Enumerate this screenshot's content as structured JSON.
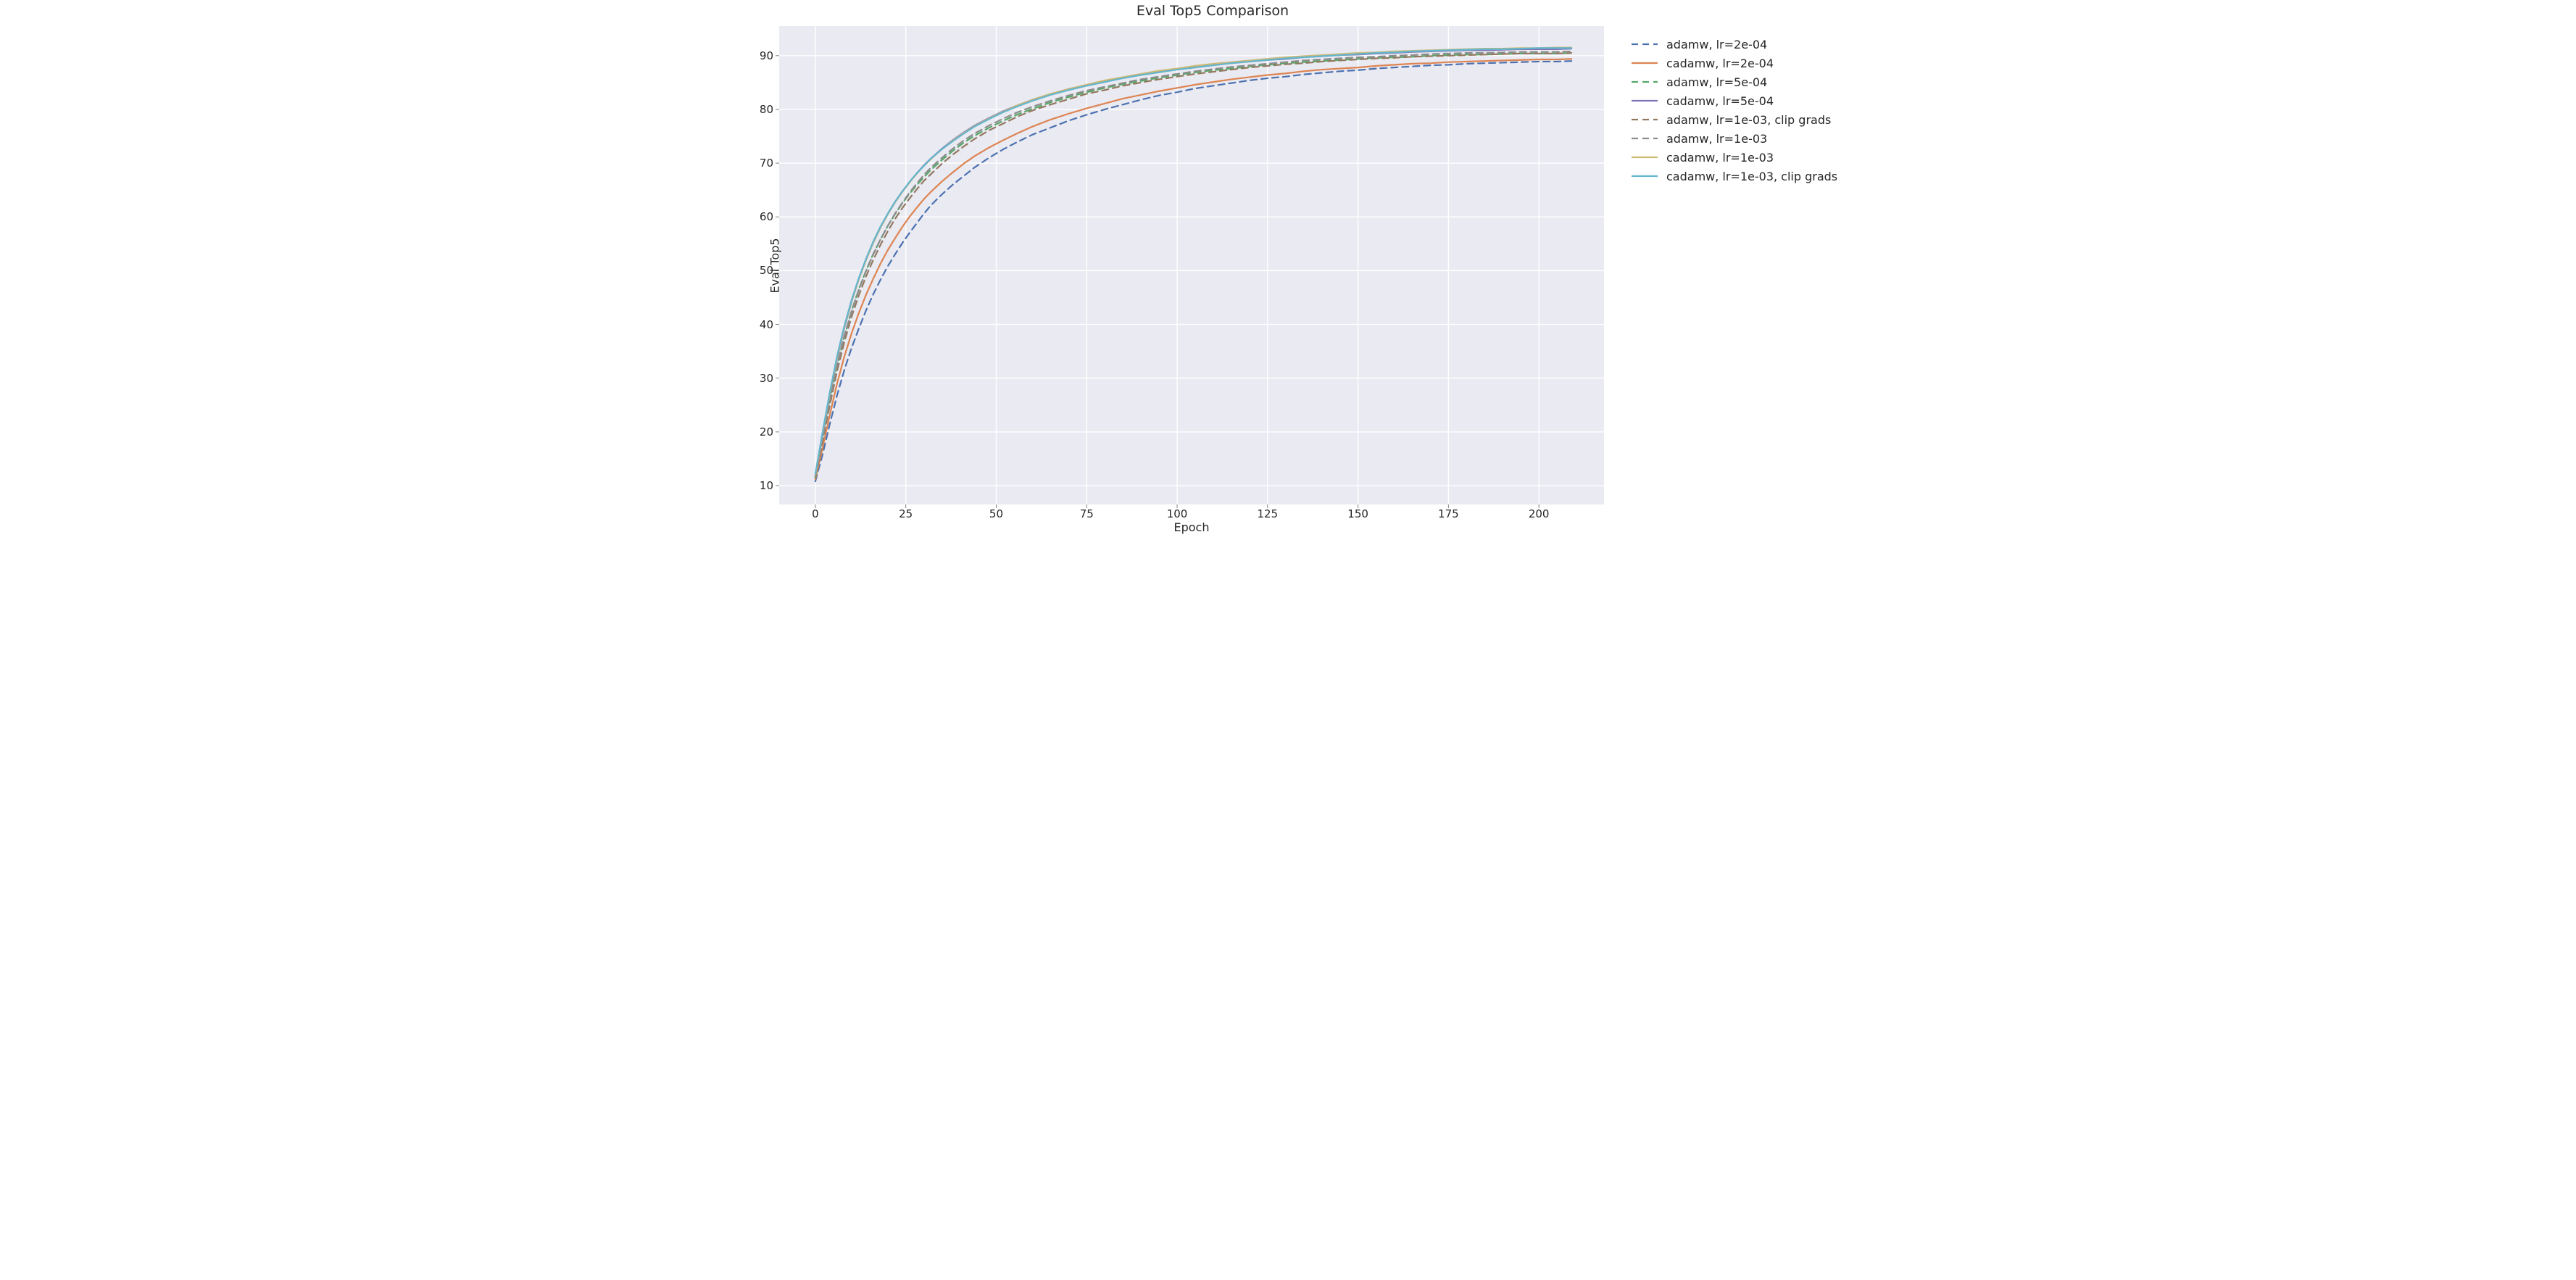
{
  "chart": {
    "type": "line",
    "title": "Eval Top5 Comparison",
    "xlabel": "Epoch",
    "ylabel": "Eval Top5",
    "title_fontsize": 19,
    "label_fontsize": 16,
    "tick_fontsize": 15,
    "background_color": "#eaeaf2",
    "grid_color": "#ffffff",
    "grid_linewidth": 1.4,
    "text_color": "#262626",
    "figure_bg": "#ffffff",
    "line_width": 2.2,
    "dash_pattern": "9,6",
    "xlim": [
      -10,
      218
    ],
    "ylim": [
      6.5,
      95.5
    ],
    "xticks": [
      0,
      25,
      50,
      75,
      100,
      125,
      150,
      175,
      200
    ],
    "yticks": [
      10,
      20,
      30,
      40,
      50,
      60,
      70,
      80,
      90
    ],
    "legend_position": "outside-right-top",
    "aspect_ratio": "1520x756",
    "series": [
      {
        "name": "adamw, lr=2e-04",
        "color": "#4c72b0",
        "dash": true,
        "x": [
          0,
          2,
          4,
          6,
          8,
          10,
          12,
          14,
          16,
          18,
          20,
          22,
          24,
          26,
          28,
          30,
          32,
          35,
          38,
          41,
          44,
          48,
          52,
          56,
          60,
          65,
          70,
          75,
          80,
          85,
          90,
          95,
          100,
          105,
          110,
          115,
          120,
          125,
          130,
          135,
          140,
          145,
          150,
          155,
          160,
          165,
          170,
          175,
          180,
          185,
          190,
          195,
          200,
          205,
          209
        ],
        "y": [
          10.8,
          15.8,
          21.5,
          26.8,
          31.5,
          35.6,
          39.2,
          42.6,
          45.6,
          48.3,
          50.8,
          53.0,
          55.1,
          57.0,
          58.8,
          60.6,
          62.2,
          64.2,
          66.0,
          67.6,
          69.2,
          71.0,
          72.6,
          74.0,
          75.3,
          76.6,
          77.9,
          79.0,
          80.0,
          80.9,
          81.8,
          82.6,
          83.2,
          83.9,
          84.4,
          84.9,
          85.4,
          85.8,
          86.1,
          86.5,
          86.8,
          87.1,
          87.3,
          87.6,
          87.8,
          88.0,
          88.2,
          88.3,
          88.5,
          88.6,
          88.7,
          88.8,
          88.9,
          88.9,
          89.0
        ]
      },
      {
        "name": "cadamw, lr=2e-04",
        "color": "#dd8452",
        "dash": false,
        "x": [
          0,
          2,
          4,
          6,
          8,
          10,
          12,
          14,
          16,
          18,
          20,
          22,
          24,
          26,
          28,
          30,
          32,
          35,
          38,
          41,
          44,
          48,
          52,
          56,
          60,
          65,
          70,
          75,
          80,
          85,
          90,
          95,
          100,
          105,
          110,
          115,
          120,
          125,
          130,
          135,
          140,
          145,
          150,
          155,
          160,
          165,
          170,
          175,
          180,
          185,
          190,
          195,
          200,
          205,
          209
        ],
        "y": [
          11.2,
          17.0,
          23.2,
          29.0,
          34.0,
          38.3,
          42.1,
          45.5,
          48.5,
          51.3,
          53.8,
          56.0,
          58.1,
          60.0,
          61.7,
          63.3,
          64.7,
          66.6,
          68.3,
          69.9,
          71.3,
          72.9,
          74.3,
          75.6,
          76.8,
          78.1,
          79.2,
          80.2,
          81.1,
          82.0,
          82.7,
          83.4,
          84.0,
          84.6,
          85.1,
          85.6,
          86.0,
          86.4,
          86.7,
          87.1,
          87.4,
          87.6,
          87.8,
          88.1,
          88.3,
          88.5,
          88.6,
          88.8,
          88.9,
          89.0,
          89.1,
          89.2,
          89.3,
          89.3,
          89.4
        ]
      },
      {
        "name": "adamw, lr=5e-04",
        "color": "#55a868",
        "dash": true,
        "x": [
          0,
          2,
          4,
          6,
          8,
          10,
          12,
          14,
          16,
          18,
          20,
          22,
          24,
          26,
          28,
          30,
          32,
          35,
          38,
          41,
          44,
          48,
          52,
          56,
          60,
          65,
          70,
          75,
          80,
          85,
          90,
          95,
          100,
          105,
          110,
          115,
          120,
          125,
          130,
          135,
          140,
          145,
          150,
          155,
          160,
          165,
          170,
          175,
          180,
          185,
          190,
          195,
          200,
          205,
          209
        ],
        "y": [
          11.5,
          18.6,
          25.7,
          32.2,
          37.7,
          42.5,
          46.5,
          50.0,
          53.1,
          55.8,
          58.3,
          60.5,
          62.5,
          64.3,
          65.9,
          67.4,
          68.8,
          70.6,
          72.3,
          73.8,
          75.1,
          76.6,
          77.9,
          79.1,
          80.1,
          81.3,
          82.3,
          83.2,
          84.0,
          84.7,
          85.3,
          85.9,
          86.4,
          86.9,
          87.3,
          87.6,
          88.0,
          88.3,
          88.6,
          88.8,
          89.0,
          89.2,
          89.4,
          89.6,
          89.7,
          89.8,
          90.0,
          90.1,
          90.2,
          90.2,
          90.3,
          90.4,
          90.4,
          90.4,
          90.5
        ]
      },
      {
        "name": "cadamw, lr=5e-04",
        "color": "#8172b3",
        "dash": false,
        "x": [
          0,
          2,
          4,
          6,
          8,
          10,
          12,
          14,
          16,
          18,
          20,
          22,
          24,
          26,
          28,
          30,
          32,
          35,
          38,
          41,
          44,
          48,
          52,
          56,
          60,
          65,
          70,
          75,
          80,
          85,
          90,
          95,
          100,
          105,
          110,
          115,
          120,
          125,
          130,
          135,
          140,
          145,
          150,
          155,
          160,
          165,
          170,
          175,
          180,
          185,
          190,
          195,
          200,
          205,
          209
        ],
        "y": [
          11.9,
          19.4,
          26.9,
          33.6,
          39.3,
          44.2,
          48.4,
          52.0,
          55.2,
          58.0,
          60.5,
          62.7,
          64.7,
          66.4,
          68.1,
          69.6,
          70.9,
          72.7,
          74.3,
          75.7,
          77.0,
          78.4,
          79.7,
          80.8,
          81.8,
          82.8,
          83.8,
          84.5,
          85.2,
          85.9,
          86.5,
          87.0,
          87.5,
          87.9,
          88.3,
          88.6,
          88.9,
          89.2,
          89.4,
          89.7,
          89.9,
          90.1,
          90.2,
          90.4,
          90.5,
          90.7,
          90.8,
          90.9,
          91.0,
          91.0,
          91.1,
          91.2,
          91.2,
          91.2,
          91.3
        ]
      },
      {
        "name": "adamw, lr=1e-03, clip grads",
        "color": "#937860",
        "dash": true,
        "x": [
          0,
          2,
          4,
          6,
          8,
          10,
          12,
          14,
          16,
          18,
          20,
          22,
          24,
          26,
          28,
          30,
          32,
          35,
          38,
          41,
          44,
          48,
          52,
          56,
          60,
          65,
          70,
          75,
          80,
          85,
          90,
          95,
          100,
          105,
          110,
          115,
          120,
          125,
          130,
          135,
          140,
          145,
          150,
          155,
          160,
          165,
          170,
          175,
          180,
          185,
          190,
          195,
          200,
          205,
          209
        ],
        "y": [
          11.7,
          18.2,
          25.0,
          31.3,
          36.7,
          41.4,
          45.4,
          48.9,
          52.0,
          54.8,
          57.3,
          59.6,
          61.6,
          63.4,
          65.1,
          66.7,
          68.0,
          69.9,
          71.6,
          73.1,
          74.5,
          76.1,
          77.4,
          78.7,
          79.8,
          80.9,
          81.9,
          82.9,
          83.6,
          84.4,
          85.0,
          85.6,
          86.1,
          86.6,
          87.0,
          87.4,
          87.8,
          88.1,
          88.4,
          88.6,
          88.9,
          89.1,
          89.3,
          89.5,
          89.6,
          89.8,
          89.9,
          90.0,
          90.1,
          90.2,
          90.3,
          90.4,
          90.4,
          90.4,
          90.5
        ]
      },
      {
        "name": "adamw, lr=1e-03",
        "color": "#8c8c8c",
        "dash": true,
        "x": [
          0,
          2,
          4,
          6,
          8,
          10,
          12,
          14,
          16,
          18,
          20,
          22,
          24,
          26,
          28,
          30,
          32,
          35,
          38,
          41,
          44,
          48,
          52,
          56,
          60,
          65,
          70,
          75,
          80,
          85,
          90,
          95,
          100,
          105,
          110,
          115,
          120,
          125,
          130,
          135,
          140,
          145,
          150,
          155,
          160,
          165,
          170,
          175,
          180,
          185,
          190,
          195,
          200,
          205,
          209
        ],
        "y": [
          11.8,
          18.8,
          25.9,
          32.3,
          37.8,
          42.4,
          46.4,
          49.9,
          53.0,
          55.8,
          58.3,
          60.6,
          62.6,
          64.5,
          66.2,
          67.8,
          69.2,
          71.0,
          72.7,
          74.2,
          75.5,
          77.0,
          78.3,
          79.5,
          80.5,
          81.6,
          82.6,
          83.5,
          84.2,
          84.9,
          85.6,
          86.1,
          86.6,
          87.1,
          87.5,
          87.9,
          88.2,
          88.5,
          88.8,
          89.1,
          89.3,
          89.5,
          89.7,
          89.8,
          90.0,
          90.1,
          90.3,
          90.4,
          90.5,
          90.5,
          90.6,
          90.7,
          90.7,
          90.7,
          90.8
        ]
      },
      {
        "name": "cadamw, lr=1e-03",
        "color": "#ccb974",
        "dash": false,
        "x": [
          0,
          2,
          4,
          6,
          8,
          10,
          12,
          14,
          16,
          18,
          20,
          22,
          24,
          26,
          28,
          30,
          32,
          35,
          38,
          41,
          44,
          48,
          52,
          56,
          60,
          65,
          70,
          75,
          80,
          85,
          90,
          95,
          100,
          105,
          110,
          115,
          120,
          125,
          130,
          135,
          140,
          145,
          150,
          155,
          160,
          165,
          170,
          175,
          180,
          185,
          190,
          195,
          200,
          205,
          209
        ],
        "y": [
          12.1,
          19.8,
          27.2,
          33.8,
          39.5,
          44.3,
          48.4,
          52.0,
          55.2,
          58.0,
          60.5,
          62.7,
          64.6,
          66.4,
          68.0,
          69.5,
          70.8,
          72.6,
          74.2,
          75.6,
          76.9,
          78.3,
          79.6,
          80.8,
          81.8,
          82.9,
          83.8,
          84.6,
          85.4,
          86.0,
          86.6,
          87.2,
          87.6,
          88.1,
          88.5,
          88.8,
          89.1,
          89.4,
          89.7,
          89.9,
          90.1,
          90.3,
          90.5,
          90.6,
          90.8,
          90.9,
          91.0,
          91.1,
          91.2,
          91.3,
          91.3,
          91.4,
          91.4,
          91.5,
          91.5
        ]
      },
      {
        "name": "cadamw, lr=1e-03, clip grads",
        "color": "#64b5cd",
        "dash": false,
        "x": [
          0,
          2,
          4,
          6,
          8,
          10,
          12,
          14,
          16,
          18,
          20,
          22,
          24,
          26,
          28,
          30,
          32,
          35,
          38,
          41,
          44,
          48,
          52,
          56,
          60,
          65,
          70,
          75,
          80,
          85,
          90,
          95,
          100,
          105,
          110,
          115,
          120,
          125,
          130,
          135,
          140,
          145,
          150,
          155,
          160,
          165,
          170,
          175,
          180,
          185,
          190,
          195,
          200,
          205,
          209
        ],
        "y": [
          12.2,
          20.0,
          27.4,
          34.1,
          39.7,
          44.5,
          48.6,
          52.2,
          55.4,
          58.2,
          60.6,
          62.8,
          64.7,
          66.5,
          68.1,
          69.5,
          70.9,
          72.6,
          74.1,
          75.5,
          76.8,
          78.2,
          79.5,
          80.6,
          81.6,
          82.7,
          83.6,
          84.4,
          85.1,
          85.8,
          86.4,
          86.9,
          87.4,
          87.8,
          88.2,
          88.6,
          88.9,
          89.2,
          89.5,
          89.7,
          89.9,
          90.1,
          90.3,
          90.5,
          90.6,
          90.8,
          90.9,
          91.0,
          91.1,
          91.2,
          91.2,
          91.3,
          91.4,
          91.4,
          91.4
        ]
      }
    ]
  }
}
